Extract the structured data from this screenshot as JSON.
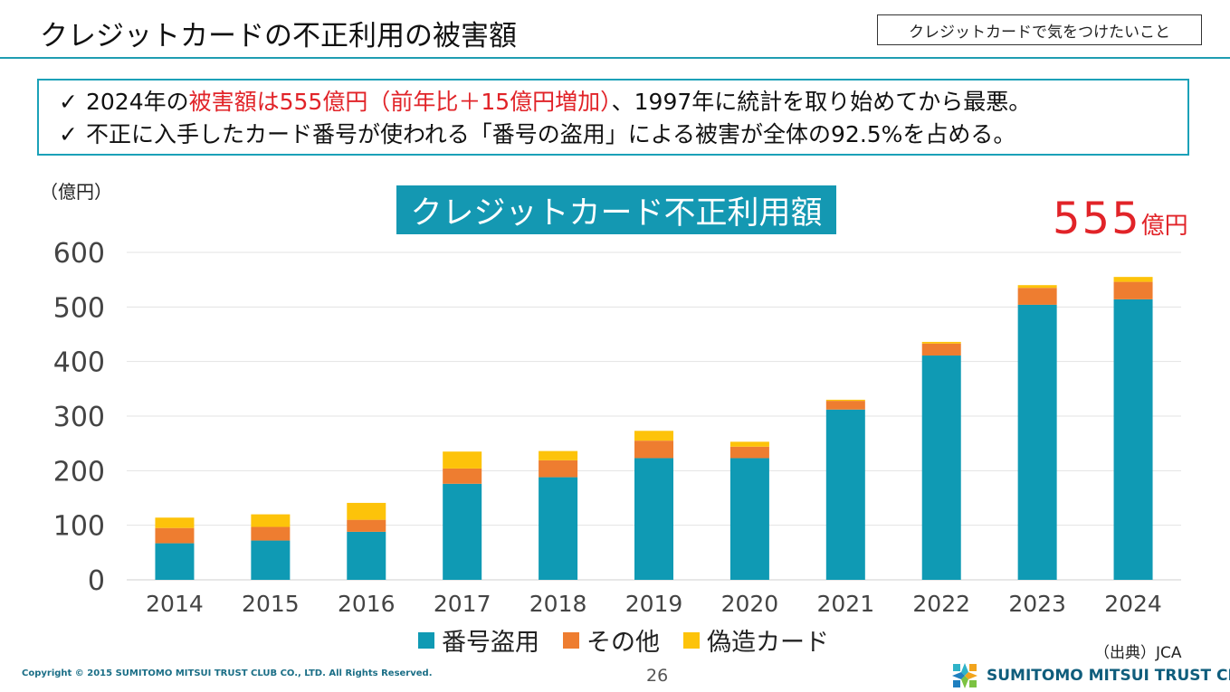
{
  "header": {
    "title": "クレジットカードの不正利用の被害額",
    "tag": "クレジットカードで気をつけたいこと"
  },
  "summary": {
    "check_icon": "check-icon",
    "line1": {
      "prefix": "2024年の",
      "highlight": "被害額は555億円（前年比＋15億円増加）",
      "suffix": "、1997年に統計を取り始めてから最悪。"
    },
    "line2": "不正に入手したカード番号が使われる「番号の盗用」による被害が全体の92.5%を占める。"
  },
  "total": {
    "value": "555",
    "unit": "億円"
  },
  "footer": {
    "source": "（出典）JCA",
    "copyright": "Copyright © 2015 SUMITOMO MITSUI TRUST CLUB CO., LTD. All Rights Reserved.",
    "page_number": "26",
    "brand_name": "SUMITOMO MITSUI TRUST CLUB",
    "brand_logo_icon": "sumitomo-mitsui-trust-club-logo-icon"
  },
  "chart_data": {
    "type": "bar",
    "stacked": true,
    "title": "クレジットカード不正利用額",
    "ylabel": "（億円）",
    "xlabel": "",
    "ylim": [
      0,
      600
    ],
    "yticks": [
      0,
      100,
      200,
      300,
      400,
      500,
      600
    ],
    "grid": true,
    "legend_position": "bottom",
    "categories": [
      "2014",
      "2015",
      "2016",
      "2017",
      "2018",
      "2019",
      "2020",
      "2021",
      "2022",
      "2023",
      "2024"
    ],
    "series": [
      {
        "name": "番号盗用",
        "color": "#0f9ab4",
        "values": [
          67,
          72,
          88,
          176,
          188,
          223,
          223,
          312,
          411,
          504,
          514
        ]
      },
      {
        "name": "その他",
        "color": "#ee7d30",
        "values": [
          28,
          25,
          22,
          28,
          31,
          32,
          21,
          16,
          22,
          31,
          32
        ]
      },
      {
        "name": "偽造カード",
        "color": "#fdc30a",
        "values": [
          19,
          23,
          31,
          31,
          17,
          18,
          9,
          2,
          3,
          5,
          9
        ]
      }
    ]
  }
}
